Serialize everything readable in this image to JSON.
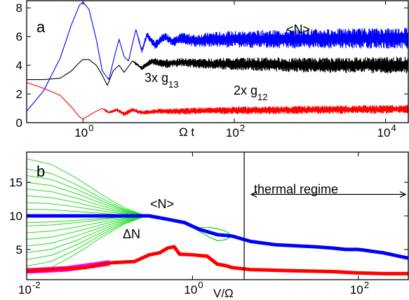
{
  "colors": {
    "blue": "#0000ff",
    "black": "#000000",
    "red": "#ff0000",
    "green": "#22dd22",
    "magenta": "#ff00ff",
    "axis": "#000000"
  },
  "chart_data": [
    {
      "type": "line",
      "panel_label": "a",
      "x_scale": "log",
      "xlabel": "Ω t",
      "xlim": [
        0.18,
        20000
      ],
      "ylim": [
        0,
        8.5
      ],
      "x_ticks": [
        {
          "value": 1,
          "label": "10",
          "exp": "0"
        },
        {
          "value": 100,
          "label": "10",
          "exp": "2"
        },
        {
          "value": 10000,
          "label": "10",
          "exp": "4"
        }
      ],
      "y_ticks": [
        {
          "value": 0,
          "label": "0"
        },
        {
          "value": 2,
          "label": "2"
        },
        {
          "value": 4,
          "label": "4"
        },
        {
          "value": 6,
          "label": "6"
        },
        {
          "value": 8,
          "label": "8"
        }
      ],
      "annotations": {
        "n": "<N>",
        "g13_prefix": "3x g",
        "g13_sub": "13",
        "g12_prefix": "2x g",
        "g12_sub": "12"
      },
      "series": [
        {
          "key": "N",
          "color": "blue",
          "x": [
            0.18,
            0.3,
            0.5,
            0.7,
            0.9,
            1.0,
            1.2,
            1.5,
            1.8,
            2.2,
            2.6,
            3.0,
            3.5,
            4.0,
            5.0,
            6.0,
            7.0,
            9.0,
            12,
            16,
            20,
            30,
            50,
            100,
            1000,
            20000
          ],
          "y": [
            0.8,
            2.2,
            4.5,
            6.8,
            8.2,
            8.4,
            7.9,
            5.8,
            3.6,
            3.0,
            4.6,
            5.8,
            4.6,
            4.3,
            6.5,
            5.0,
            6.1,
            5.4,
            6.0,
            5.6,
            5.9,
            5.7,
            5.8,
            5.8,
            5.85,
            5.9
          ],
          "noise": [
            0,
            0,
            0,
            0,
            0,
            0,
            0,
            0,
            0,
            0,
            0,
            0,
            0,
            0,
            0,
            0.1,
            0.15,
            0.2,
            0.2,
            0.25,
            0.25,
            0.3,
            0.35,
            0.4,
            0.45,
            0.5
          ]
        },
        {
          "key": "g13",
          "color": "black",
          "x": [
            0.18,
            0.3,
            0.5,
            0.7,
            0.9,
            1.0,
            1.2,
            1.5,
            1.8,
            2.1,
            2.5,
            3.0,
            3.5,
            4.5,
            6.0,
            8.0,
            12,
            20,
            50,
            100,
            1000,
            20000
          ],
          "y": [
            3.0,
            3.0,
            3.1,
            3.6,
            4.2,
            4.4,
            4.4,
            4.0,
            3.3,
            2.6,
            3.6,
            4.0,
            3.5,
            4.3,
            3.8,
            4.3,
            4.1,
            4.2,
            4.1,
            4.1,
            4.0,
            4.0
          ],
          "noise": [
            0,
            0,
            0,
            0,
            0,
            0,
            0,
            0,
            0,
            0,
            0,
            0,
            0,
            0,
            0.1,
            0.15,
            0.2,
            0.2,
            0.25,
            0.3,
            0.35,
            0.4
          ]
        },
        {
          "key": "g12",
          "color": "red",
          "x": [
            0.18,
            0.3,
            0.5,
            0.7,
            0.9,
            1.0,
            1.2,
            1.5,
            1.8,
            2.2,
            2.8,
            3.5,
            4.5,
            6,
            10,
            20,
            50,
            100,
            1000,
            20000
          ],
          "y": [
            2.8,
            2.4,
            1.9,
            1.1,
            0.4,
            0.25,
            0.5,
            0.8,
            1.0,
            0.7,
            0.9,
            0.6,
            0.9,
            0.7,
            0.8,
            0.8,
            0.85,
            0.85,
            0.9,
            0.95
          ],
          "noise": [
            0,
            0,
            0,
            0,
            0,
            0,
            0,
            0,
            0,
            0.05,
            0.08,
            0.1,
            0.1,
            0.1,
            0.12,
            0.15,
            0.15,
            0.18,
            0.2,
            0.2
          ]
        }
      ]
    },
    {
      "type": "line",
      "panel_label": "b",
      "x_scale": "log",
      "xlabel": "V/Ω",
      "xlim": [
        0.01,
        400
      ],
      "ylim": [
        0.5,
        19.5
      ],
      "x_ticks": [
        {
          "value": 0.01,
          "label": "10",
          "exp": "-2"
        },
        {
          "value": 1,
          "label": "10",
          "exp": "0"
        },
        {
          "value": 100,
          "label": "10",
          "exp": "2"
        }
      ],
      "y_ticks": [
        {
          "value": 5,
          "label": "5"
        },
        {
          "value": 10,
          "label": "10"
        },
        {
          "value": 15,
          "label": "15"
        }
      ],
      "regime_boundary_x": 4.2,
      "annotations": {
        "thermal": "thermal regime",
        "n": "<N>",
        "dn": "ΔN"
      },
      "series": [
        {
          "key": "N",
          "color": "blue",
          "x": [
            0.01,
            0.1,
            0.3,
            0.5,
            0.8,
            1.2,
            2,
            3,
            5,
            10,
            30,
            50,
            70,
            100,
            200,
            400
          ],
          "y": [
            10.0,
            10.0,
            10.0,
            9.5,
            9.0,
            8.0,
            7.2,
            7.0,
            6.2,
            5.7,
            5.4,
            5.2,
            5.0,
            5.0,
            4.5,
            3.7
          ]
        },
        {
          "key": "dN",
          "color": "red",
          "x": [
            0.01,
            0.05,
            0.1,
            0.2,
            0.3,
            0.4,
            0.5,
            0.6,
            0.7,
            1.0,
            1.5,
            2.0,
            2.5,
            3.0,
            5.0,
            10,
            20,
            50,
            100,
            200,
            400
          ],
          "y": [
            1.8,
            2.3,
            3.0,
            3.2,
            4.2,
            4.5,
            5.2,
            5.4,
            4.3,
            4.2,
            4.0,
            2.8,
            2.6,
            2.3,
            2.0,
            1.9,
            1.8,
            1.7,
            1.5,
            1.4,
            1.4
          ]
        }
      ],
      "fan": {
        "color": "green",
        "x": [
          0.01,
          0.02,
          0.04,
          0.08,
          0.15,
          0.25,
          0.35,
          0.5,
          0.8,
          1.2,
          1.6,
          2.0,
          2.5,
          3.0,
          5,
          10,
          30,
          50,
          70,
          100
        ],
        "start_values": [
          1.5,
          2.5,
          3.5,
          4.5,
          5.5,
          6.5,
          7.5,
          8.5,
          9.0,
          11.0,
          12.0,
          13.0,
          14.0,
          15.0,
          16.0,
          17.0,
          18.5
        ]
      },
      "magenta_band": {
        "color": "magenta",
        "x": [
          0.01,
          0.03,
          0.06,
          0.1
        ],
        "y": [
          1.8,
          2.1,
          2.6,
          3.0
        ]
      }
    }
  ]
}
